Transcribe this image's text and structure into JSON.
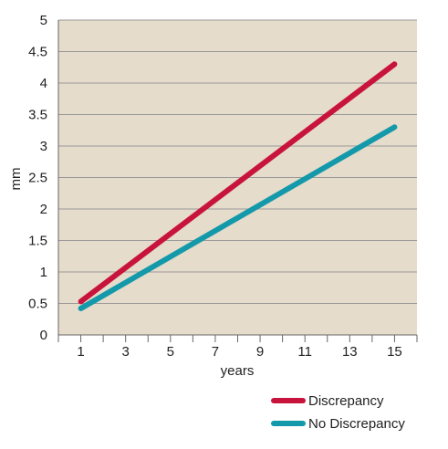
{
  "chart_data": {
    "type": "line",
    "xlabel": "years",
    "ylabel": "mm",
    "x_ticks": [
      1,
      3,
      5,
      7,
      9,
      11,
      13,
      15
    ],
    "y_ticks": [
      "0",
      "0.5",
      "1",
      "1.5",
      "2",
      "2.5",
      "3",
      "3.5",
      "4",
      "4.5",
      "5"
    ],
    "xlim": [
      0,
      16
    ],
    "ylim": [
      0,
      5
    ],
    "grid": "horizontal",
    "legend_position": "bottom-right",
    "background_color": "#e5dccb",
    "series": [
      {
        "name": "Discrepancy",
        "color": "#c8143c",
        "x": [
          1,
          15
        ],
        "y": [
          0.53,
          4.3
        ]
      },
      {
        "name": "No Discrepancy",
        "color": "#1499aa",
        "x": [
          1,
          15
        ],
        "y": [
          0.42,
          3.3
        ]
      }
    ]
  }
}
